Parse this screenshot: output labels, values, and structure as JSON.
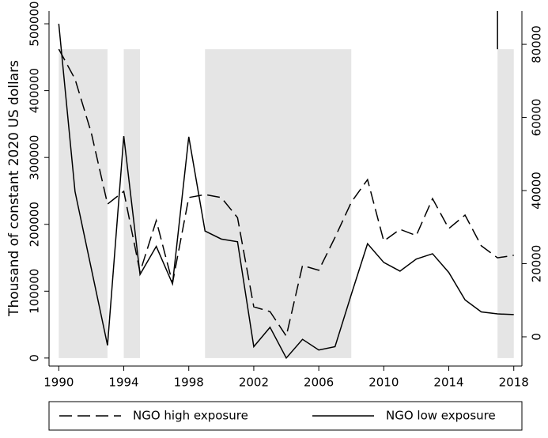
{
  "chart_data": {
    "type": "line",
    "y_label": "Thousand of constant 2020 US dollars",
    "x": [
      1990,
      1991,
      1992,
      1993,
      1994,
      1995,
      1996,
      1997,
      1998,
      1999,
      2000,
      2001,
      2002,
      2003,
      2004,
      2005,
      2006,
      2007,
      2008,
      2009,
      2010,
      2011,
      2012,
      2013,
      2014,
      2015,
      2016,
      2017,
      2018
    ],
    "series": [
      {
        "name": "NGO high exposure",
        "color": "#000000",
        "dash": "dashed",
        "axis": "y2",
        "values": [
          78700,
          70500,
          55800,
          36300,
          39800,
          17700,
          31800,
          14700,
          38100,
          38900,
          38100,
          32600,
          8200,
          6900,
          200,
          19500,
          18200,
          27200,
          36800,
          43000,
          26200,
          29400,
          27700,
          37800,
          29600,
          33300,
          24900,
          21600,
          22300
        ]
      },
      {
        "name": "NGO low exposure",
        "color": "#000000",
        "dash": "solid",
        "axis": "y",
        "values": [
          500000,
          249000,
          134000,
          19000,
          332000,
          125000,
          167000,
          111000,
          331000,
          190000,
          178000,
          174000,
          17000,
          46000,
          0,
          28000,
          12000,
          17000,
          95000,
          171000,
          143000,
          130000,
          148000,
          156000,
          128000,
          87000,
          69000,
          66000,
          65000
        ]
      }
    ],
    "xlim": [
      1989.4,
      2018.5
    ],
    "xticks": [
      1990,
      1994,
      1998,
      2002,
      2006,
      2010,
      2014,
      2018
    ],
    "ylim": [
      -12000,
      519000
    ],
    "yticks": [
      0,
      100000,
      200000,
      300000,
      400000,
      500000
    ],
    "y2lim": [
      -8000,
      89100
    ],
    "y2ticks": [
      0,
      20000,
      40000,
      60000,
      80000
    ],
    "shaded_periods": [
      [
        1990,
        1993
      ],
      [
        1994,
        1995
      ],
      [
        1999,
        2008
      ],
      [
        2017,
        2018
      ]
    ],
    "shade_top": 462000,
    "shade_color": "#e5e5e5",
    "vline_x": 2017,
    "legend": "bottom"
  }
}
